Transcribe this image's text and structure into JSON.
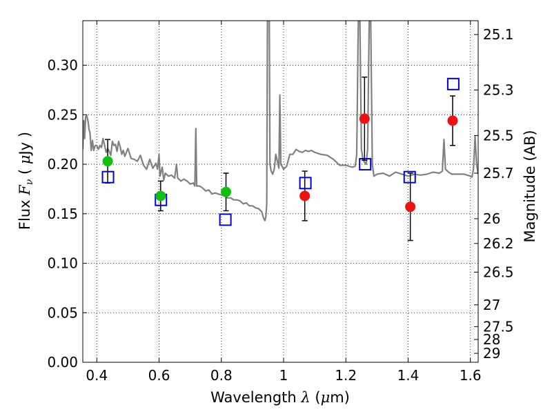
{
  "chart_data": {
    "type": "scatter",
    "xlabel": {
      "prefix": "Wavelength  ",
      "symbol": "λ",
      "unit_open": " (",
      "unit_mu": "μ",
      "unit_rest": "m)"
    },
    "ylabel": {
      "prefix": "Flux  ",
      "symbol": "F",
      "subscript": "ν",
      "unit_open": "  ( ",
      "unit_mu": "μ",
      "unit_rest": "Jy )"
    },
    "ylabel_right": "Magnitude (AB)",
    "xlim": [
      0.355,
      1.625
    ],
    "ylim": [
      0.0,
      0.345
    ],
    "xticks": [
      0.4,
      0.6,
      0.8,
      1.0,
      1.2,
      1.4,
      1.6
    ],
    "xtick_labels": [
      "0.4",
      "0.6",
      "0.8",
      "1",
      "1.2",
      "1.4",
      "1.6"
    ],
    "yticks": [
      0.0,
      0.05,
      0.1,
      0.15,
      0.2,
      0.25,
      0.3
    ],
    "ytick_labels": [
      "0.00",
      "0.05",
      "0.10",
      "0.15",
      "0.20",
      "0.25",
      "0.30"
    ],
    "right_ticks": [
      {
        "label": "25.1",
        "flux": 0.331
      },
      {
        "label": "25.3",
        "flux": 0.275
      },
      {
        "label": "25.5",
        "flux": 0.229
      },
      {
        "label": "25.7",
        "flux": 0.191
      },
      {
        "label": "26",
        "flux": 0.145
      },
      {
        "label": "26.2",
        "flux": 0.12
      },
      {
        "label": "26.5",
        "flux": 0.091
      },
      {
        "label": "27",
        "flux": 0.058
      },
      {
        "label": "27.5",
        "flux": 0.036
      },
      {
        "label": "28",
        "flux": 0.023
      },
      {
        "label": "29",
        "flux": 0.009
      }
    ],
    "grid": true,
    "colors": {
      "spectrum": "#808080",
      "green": "#10c010",
      "red": "#ee1111",
      "blue_box": "#0000dd",
      "errorbar": "#000000"
    },
    "series": [
      {
        "marker": "circle",
        "color": "green",
        "points": [
          {
            "x": 0.435,
            "y": 0.203,
            "err": 0.022
          },
          {
            "x": 0.605,
            "y": 0.168,
            "err": 0.015
          },
          {
            "x": 0.815,
            "y": 0.172,
            "err": 0.019
          }
        ]
      },
      {
        "marker": "circle",
        "color": "red",
        "points": [
          {
            "x": 1.068,
            "y": 0.168,
            "err": 0.025
          },
          {
            "x": 1.26,
            "y": 0.246,
            "err": 0.042
          },
          {
            "x": 1.407,
            "y": 0.157,
            "err": 0.034
          },
          {
            "x": 1.543,
            "y": 0.244,
            "err": 0.025
          }
        ]
      },
      {
        "marker": "square",
        "color": "blue_box",
        "points": [
          {
            "x": 0.436,
            "y": 0.187
          },
          {
            "x": 0.606,
            "y": 0.164
          },
          {
            "x": 0.813,
            "y": 0.144
          },
          {
            "x": 1.07,
            "y": 0.181
          },
          {
            "x": 1.262,
            "y": 0.2
          },
          {
            "x": 1.405,
            "y": 0.187
          },
          {
            "x": 1.545,
            "y": 0.281
          }
        ]
      },
      {
        "type": "line",
        "color": "spectrum",
        "points": [
          [
            0.355,
            0.215
          ],
          [
            0.358,
            0.244
          ],
          [
            0.361,
            0.226
          ],
          [
            0.364,
            0.248
          ],
          [
            0.368,
            0.249
          ],
          [
            0.372,
            0.243
          ],
          [
            0.375,
            0.235
          ],
          [
            0.378,
            0.232
          ],
          [
            0.382,
            0.214
          ],
          [
            0.386,
            0.224
          ],
          [
            0.39,
            0.214
          ],
          [
            0.395,
            0.219
          ],
          [
            0.4,
            0.219
          ],
          [
            0.405,
            0.215
          ],
          [
            0.41,
            0.219
          ],
          [
            0.415,
            0.217
          ],
          [
            0.42,
            0.226
          ],
          [
            0.425,
            0.219
          ],
          [
            0.43,
            0.212
          ],
          [
            0.435,
            0.216
          ],
          [
            0.44,
            0.213
          ],
          [
            0.445,
            0.209
          ],
          [
            0.45,
            0.223
          ],
          [
            0.455,
            0.219
          ],
          [
            0.46,
            0.22
          ],
          [
            0.465,
            0.213
          ],
          [
            0.47,
            0.223
          ],
          [
            0.475,
            0.218
          ],
          [
            0.48,
            0.21
          ],
          [
            0.485,
            0.214
          ],
          [
            0.49,
            0.208
          ],
          [
            0.5,
            0.216
          ],
          [
            0.51,
            0.206
          ],
          [
            0.52,
            0.205
          ],
          [
            0.53,
            0.203
          ],
          [
            0.54,
            0.209
          ],
          [
            0.55,
            0.199
          ],
          [
            0.56,
            0.195
          ],
          [
            0.57,
            0.205
          ],
          [
            0.58,
            0.196
          ],
          [
            0.59,
            0.201
          ],
          [
            0.595,
            0.195
          ],
          [
            0.6,
            0.21
          ],
          [
            0.603,
            0.188
          ],
          [
            0.61,
            0.197
          ],
          [
            0.615,
            0.184
          ],
          [
            0.62,
            0.191
          ],
          [
            0.63,
            0.188
          ],
          [
            0.64,
            0.189
          ],
          [
            0.65,
            0.186
          ],
          [
            0.656,
            0.2
          ],
          [
            0.66,
            0.186
          ],
          [
            0.67,
            0.183
          ],
          [
            0.68,
            0.185
          ],
          [
            0.69,
            0.183
          ],
          [
            0.7,
            0.18
          ],
          [
            0.71,
            0.181
          ],
          [
            0.715,
            0.178
          ],
          [
            0.718,
            0.236
          ],
          [
            0.721,
            0.178
          ],
          [
            0.73,
            0.178
          ],
          [
            0.74,
            0.176
          ],
          [
            0.75,
            0.173
          ],
          [
            0.76,
            0.174
          ],
          [
            0.77,
            0.17
          ],
          [
            0.78,
            0.171
          ],
          [
            0.79,
            0.17
          ],
          [
            0.8,
            0.169
          ],
          [
            0.81,
            0.168
          ],
          [
            0.82,
            0.166
          ],
          [
            0.83,
            0.166
          ],
          [
            0.84,
            0.164
          ],
          [
            0.85,
            0.164
          ],
          [
            0.86,
            0.163
          ],
          [
            0.87,
            0.16
          ],
          [
            0.88,
            0.161
          ],
          [
            0.89,
            0.158
          ],
          [
            0.9,
            0.158
          ],
          [
            0.91,
            0.156
          ],
          [
            0.92,
            0.155
          ],
          [
            0.93,
            0.152
          ],
          [
            0.935,
            0.146
          ],
          [
            0.94,
            0.143
          ],
          [
            0.943,
            0.147
          ],
          [
            0.946,
            0.16
          ],
          [
            0.948,
            0.345
          ],
          [
            0.951,
            0.345
          ],
          [
            0.954,
            0.345
          ],
          [
            0.956,
            0.2
          ],
          [
            0.96,
            0.193
          ],
          [
            0.965,
            0.19
          ],
          [
            0.97,
            0.195
          ],
          [
            0.975,
            0.21
          ],
          [
            0.98,
            0.203
          ],
          [
            0.985,
            0.196
          ],
          [
            0.988,
            0.27
          ],
          [
            0.991,
            0.2
          ],
          [
            0.995,
            0.198
          ],
          [
            1.0,
            0.195
          ],
          [
            1.01,
            0.198
          ],
          [
            1.02,
            0.21
          ],
          [
            1.03,
            0.21
          ],
          [
            1.04,
            0.215
          ],
          [
            1.05,
            0.213
          ],
          [
            1.06,
            0.212
          ],
          [
            1.07,
            0.214
          ],
          [
            1.08,
            0.213
          ],
          [
            1.09,
            0.214
          ],
          [
            1.1,
            0.212
          ],
          [
            1.12,
            0.21
          ],
          [
            1.14,
            0.209
          ],
          [
            1.16,
            0.205
          ],
          [
            1.17,
            0.202
          ],
          [
            1.18,
            0.199
          ],
          [
            1.2,
            0.199
          ],
          [
            1.22,
            0.197
          ],
          [
            1.23,
            0.198
          ],
          [
            1.235,
            0.21
          ],
          [
            1.24,
            0.345
          ],
          [
            1.245,
            0.345
          ],
          [
            1.25,
            0.215
          ],
          [
            1.255,
            0.205
          ],
          [
            1.26,
            0.202
          ],
          [
            1.265,
            0.2
          ],
          [
            1.27,
            0.215
          ],
          [
            1.275,
            0.345
          ],
          [
            1.28,
            0.345
          ],
          [
            1.285,
            0.2
          ],
          [
            1.29,
            0.188
          ],
          [
            1.3,
            0.19
          ],
          [
            1.32,
            0.191
          ],
          [
            1.34,
            0.188
          ],
          [
            1.36,
            0.192
          ],
          [
            1.38,
            0.19
          ],
          [
            1.4,
            0.188
          ],
          [
            1.42,
            0.19
          ],
          [
            1.44,
            0.189
          ],
          [
            1.46,
            0.19
          ],
          [
            1.48,
            0.192
          ],
          [
            1.5,
            0.191
          ],
          [
            1.51,
            0.193
          ],
          [
            1.515,
            0.225
          ],
          [
            1.52,
            0.195
          ],
          [
            1.53,
            0.192
          ],
          [
            1.54,
            0.19
          ],
          [
            1.56,
            0.19
          ],
          [
            1.58,
            0.19
          ],
          [
            1.6,
            0.188
          ],
          [
            1.605,
            0.187
          ],
          [
            1.61,
            0.195
          ],
          [
            1.615,
            0.228
          ],
          [
            1.62,
            0.2
          ],
          [
            1.625,
            0.19
          ]
        ]
      }
    ]
  }
}
